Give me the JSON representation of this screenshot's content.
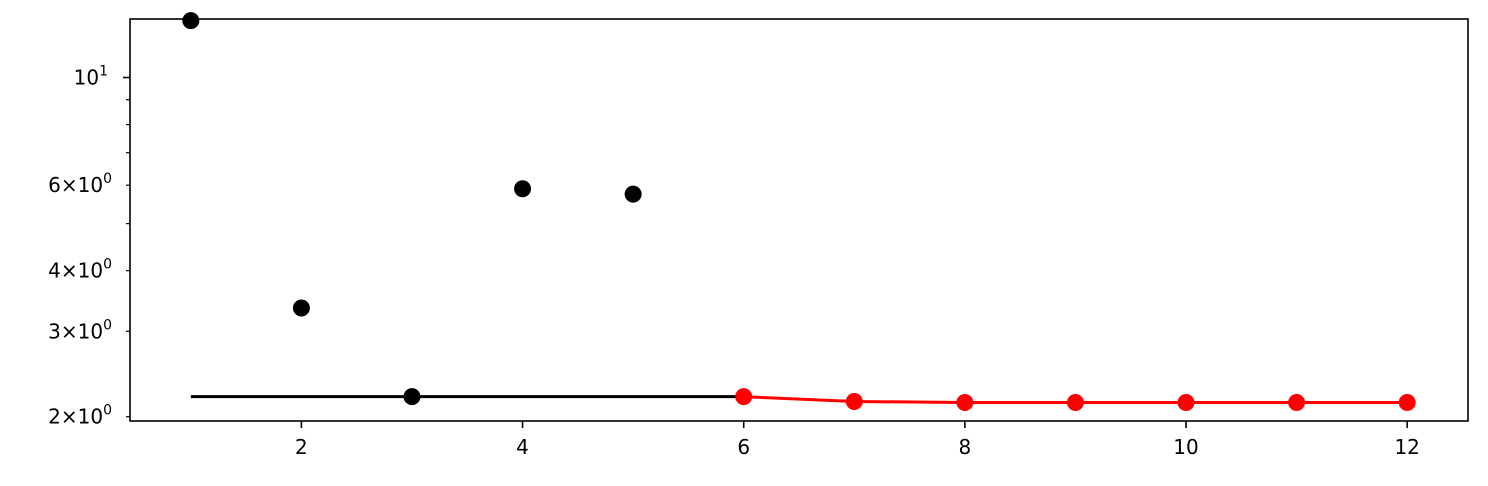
{
  "chart_data": {
    "type": "scatter",
    "title": "",
    "xlabel": "",
    "ylabel": "",
    "xlim": [
      0.45,
      12.55
    ],
    "ylim": [
      1.96,
      13.2
    ],
    "yscale": "log",
    "grid": false,
    "x_ticks": [
      2,
      4,
      6,
      8,
      10,
      12
    ],
    "x_tick_labels": [
      "2",
      "4",
      "6",
      "8",
      "10",
      "12"
    ],
    "y_major_ticks": [
      {
        "value": 10,
        "base": "10",
        "exp": "1"
      }
    ],
    "y_labeled_minor_ticks": [
      {
        "value": 2,
        "mant": "2",
        "base": "10",
        "exp": "0"
      },
      {
        "value": 3,
        "mant": "3",
        "base": "10",
        "exp": "0"
      },
      {
        "value": 4,
        "mant": "4",
        "base": "10",
        "exp": "0"
      },
      {
        "value": 6,
        "mant": "6",
        "base": "10",
        "exp": "0"
      }
    ],
    "y_unlabeled_minor_ticks": [
      5,
      7,
      8,
      9
    ],
    "series": [
      {
        "style": "markers",
        "color": "#000000",
        "x": [
          1,
          2,
          3,
          4,
          5
        ],
        "y": [
          13.1,
          3.35,
          2.2,
          5.9,
          5.75
        ]
      },
      {
        "style": "line",
        "color": "#000000",
        "x": [
          1,
          6
        ],
        "y": [
          2.2,
          2.2
        ]
      },
      {
        "style": "line-markers",
        "color": "#ff0000",
        "x": [
          6,
          7,
          8,
          9,
          10,
          11,
          12
        ],
        "y": [
          2.2,
          2.15,
          2.14,
          2.14,
          2.14,
          2.14,
          2.14
        ]
      }
    ]
  }
}
